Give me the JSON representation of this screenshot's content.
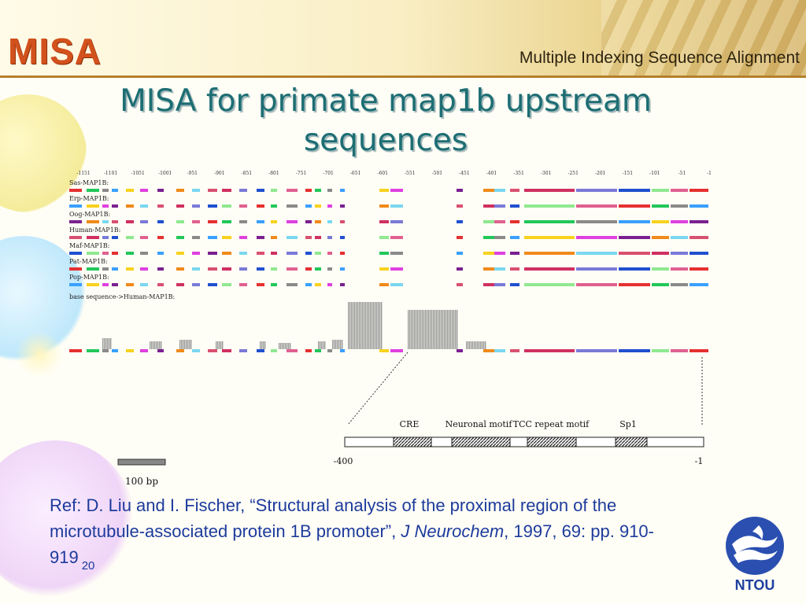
{
  "header": {
    "logo": "MISA",
    "subtitle": "Multiple Indexing Sequence Alignment"
  },
  "slide": {
    "title_line1": "MISA for primate map1b upstream",
    "title_line2": "sequences",
    "page_number": "20"
  },
  "figure": {
    "positions": [
      "-1151",
      "-1101",
      "-1051",
      "-1001",
      "-951",
      "-901",
      "-851",
      "-801",
      "-751",
      "-701",
      "-651",
      "-601",
      "-551",
      "-501",
      "-451",
      "-401",
      "-351",
      "-301",
      "-251",
      "-201",
      "-151",
      "-101",
      "-51",
      "-1"
    ],
    "sequences": [
      "Sas-MAP1B:",
      "Erp-MAP1B:",
      "Oog-MAP1B:",
      "Human-MAP1B:",
      "Maf-MAP1B:",
      "Pat-MAP1B:",
      "Pop-MAP1B:"
    ],
    "base_label": "base sequence->Human-MAP1B:",
    "motifs": [
      "CRE",
      "Neuronal motif",
      "TCC repeat motif",
      "Sp1"
    ],
    "region_start": "-400",
    "region_end": "-1",
    "scale_label": "100 bp"
  },
  "reference": {
    "prefix": "Ref: D. Liu and I. Fischer, “Structural analysis of the proximal region of the microtubule-associated protein 1B promoter”, ",
    "journal": "J Neurochem",
    "suffix": ", 1997, 69: pp. 910-919"
  },
  "logo_badge": {
    "text": "NTOU"
  },
  "colors": {
    "title": "#1d6e74",
    "reference": "#1d3b9c",
    "logo": "#d2511c",
    "header_rule": "#b57f2a",
    "segment_palette": [
      "#e53030",
      "#22c75a",
      "#8a8a8a",
      "#3aa0ff",
      "#f7d21f",
      "#e040e0",
      "#7a2090",
      "#f08a1a",
      "#7ad7f0",
      "#d85070",
      "#d03060",
      "#7a7ad8",
      "#2050d0",
      "#90e890",
      "#e06090"
    ]
  }
}
